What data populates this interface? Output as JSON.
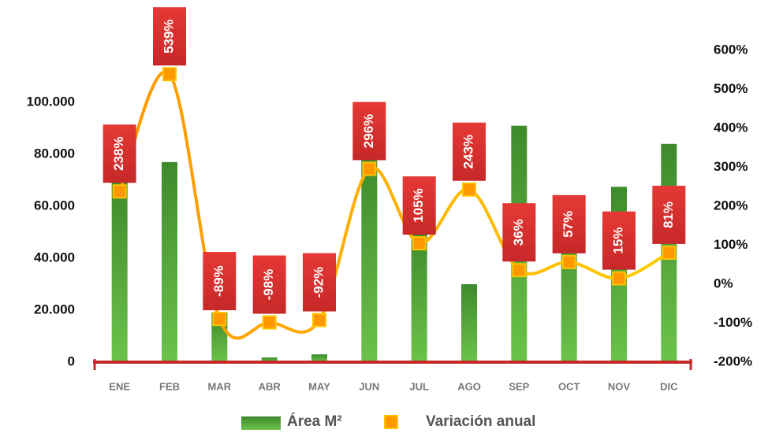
{
  "chart_data": {
    "type": "bar-line",
    "categories": [
      "ENE",
      "FEB",
      "MAR",
      "ABR",
      "MAY",
      "JUN",
      "JUL",
      "AGO",
      "SEP",
      "OCT",
      "NOV",
      "DIC"
    ],
    "series": [
      {
        "name": "Área M²",
        "type": "bar",
        "color": "#4caf3a",
        "values": [
          70000,
          77000,
          19000,
          1800,
          3000,
          79000,
          50000,
          30000,
          91000,
          61500,
          67500,
          84000
        ]
      },
      {
        "name": "Variación anual",
        "type": "line",
        "axis": "y2",
        "color": "#ffb300",
        "values": [
          238,
          539,
          -89,
          -98,
          -92,
          296,
          105,
          243,
          36,
          57,
          15,
          81
        ],
        "value_labels": [
          "238%",
          "539%",
          "-89%",
          "-98%",
          "-92%",
          "296%",
          "105%",
          "243%",
          "36%",
          "57%",
          "15%",
          "81%"
        ]
      }
    ],
    "ylim": [
      0,
      120000
    ],
    "yticks": [
      0,
      {
        "value": 20000,
        "label": "20.000"
      },
      {
        "value": 40000,
        "label": "40.000"
      },
      {
        "value": 60000,
        "label": "60.000"
      },
      {
        "value": 80000,
        "label": "80.000"
      },
      {
        "value": 100000,
        "label": "100.000"
      }
    ],
    "y2lim": [
      -200,
      600
    ],
    "y2ticks": [
      {
        "value": -200,
        "label": "-200%"
      },
      {
        "value": -100,
        "label": "-100%"
      },
      {
        "value": 0,
        "label": "0%"
      },
      {
        "value": 100,
        "label": "100%"
      },
      {
        "value": 200,
        "label": "200%"
      },
      {
        "value": 300,
        "label": "300%"
      },
      {
        "value": 400,
        "label": "400%"
      },
      {
        "value": 500,
        "label": "500%"
      },
      {
        "value": 600,
        "label": "600%"
      }
    ],
    "legend": "bottom"
  }
}
